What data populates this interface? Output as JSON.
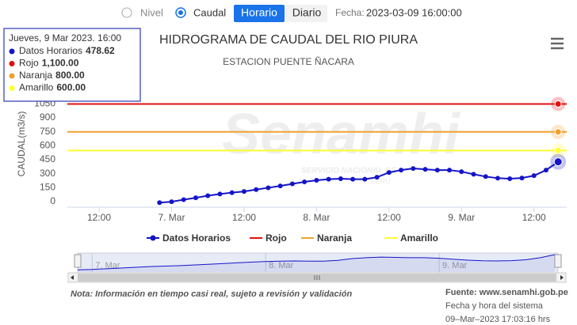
{
  "controls": {
    "radios": [
      "Nivel",
      "Caudal"
    ],
    "buttons": [
      "Horario",
      "Diario"
    ],
    "fecha_label": "Fecha:",
    "fecha": "2023-03-09 16:00:00"
  },
  "chart_data": {
    "type": "line",
    "title": "HIDROGRAMA DE CAUDAL DEL RIO PIURA",
    "subtitle": "ESTACION PUENTE ÑACARA",
    "y_label": "CAUDAL(m3/s)",
    "watermark": [
      "Senamhi",
      "SERVICIO NACIONAL DE",
      "PERU"
    ],
    "x": [
      "2023-03-06T22:00",
      "2023-03-07T00:00",
      "2023-03-07T02:00",
      "2023-03-07T04:00",
      "2023-03-07T06:00",
      "2023-03-07T08:00",
      "2023-03-07T10:00",
      "2023-03-07T12:00",
      "2023-03-07T14:00",
      "2023-03-07T16:00",
      "2023-03-07T18:00",
      "2023-03-07T20:00",
      "2023-03-07T22:00",
      "2023-03-08T00:00",
      "2023-03-08T02:00",
      "2023-03-08T04:00",
      "2023-03-08T06:00",
      "2023-03-08T08:00",
      "2023-03-08T10:00",
      "2023-03-08T12:00",
      "2023-03-08T14:00",
      "2023-03-08T16:00",
      "2023-03-08T18:00",
      "2023-03-08T20:00",
      "2023-03-08T22:00",
      "2023-03-09T00:00",
      "2023-03-09T02:00",
      "2023-03-09T04:00",
      "2023-03-09T06:00",
      "2023-03-09T08:00",
      "2023-03-09T10:00",
      "2023-03-09T12:00",
      "2023-03-09T14:00",
      "2023-03-09T16:00"
    ],
    "series": [
      {
        "name": "Datos Horarios",
        "color": "#1414c8",
        "values": [
          40,
          50,
          72,
          92,
          115,
          133,
          148,
          160,
          180,
          200,
          220,
          242,
          263,
          280,
          292,
          297,
          292,
          292,
          313,
          364,
          390,
          407,
          398,
          390,
          390,
          373,
          345,
          320,
          303,
          297,
          305,
          330,
          390,
          478.62
        ]
      }
    ],
    "plot_lines": [
      {
        "name": "Rojo",
        "color": "#e01010",
        "value": 1100,
        "value_label": "1,100.00"
      },
      {
        "name": "Naranja",
        "color": "#f0a030",
        "value": 800,
        "value_label": "800.00"
      },
      {
        "name": "Amarillo",
        "color": "#ffff33",
        "value": 600,
        "value_label": "600.00"
      }
    ],
    "xlim": [
      "2023-03-06T06:45",
      "2023-03-09T17:25"
    ],
    "xticks": [
      {
        "value": "2023-03-06T12:00",
        "label": "12:00"
      },
      {
        "value": "2023-03-07T00:00",
        "label": "7. Mar"
      },
      {
        "value": "2023-03-07T12:00",
        "label": "12:00"
      },
      {
        "value": "2023-03-08T00:00",
        "label": "8. Mar"
      },
      {
        "value": "2023-03-08T12:00",
        "label": "12:00"
      },
      {
        "value": "2023-03-09T00:00",
        "label": "9. Mar"
      },
      {
        "value": "2023-03-09T12:00",
        "label": "12:00"
      }
    ],
    "ylim": [
      0,
      1350
    ],
    "yticks": [
      0,
      150,
      300,
      450,
      600,
      750,
      900,
      1050
    ],
    "tooltip": {
      "title": "Jueves, 9 Mar 2023. 16:00"
    },
    "navigator": {
      "xlim": [
        "2023-03-06T22:00",
        "2023-03-09T16:00"
      ],
      "ticks": [
        {
          "value": "2023-03-07T00:00",
          "label": "7. Mar"
        },
        {
          "value": "2023-03-08T00:00",
          "label": "8. Mar"
        },
        {
          "value": "2023-03-09T00:00",
          "label": "9. Mar"
        }
      ]
    }
  },
  "footer": {
    "note": "Nota: Información en tiempo casi real, sujeto a revisión y validación",
    "source": "Fuente: www.senamhi.gob.pe",
    "system_label": "Fecha y hora del sistema",
    "system_time": "09–Mar–2023 17:03:16 hrs"
  }
}
